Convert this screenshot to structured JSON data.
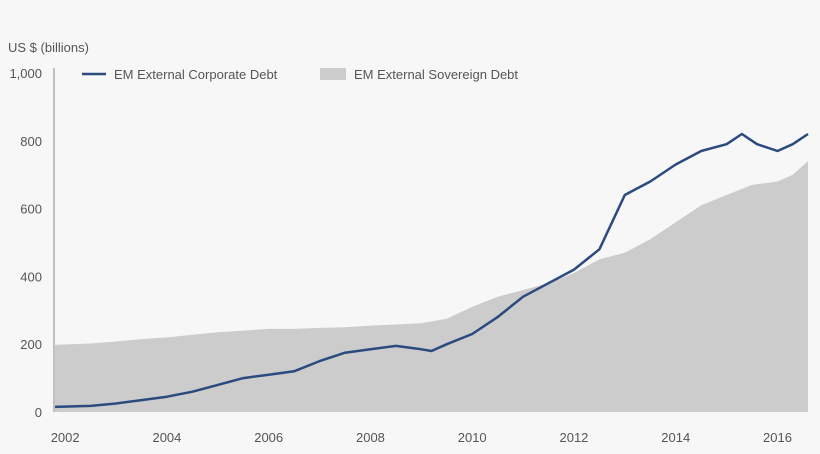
{
  "chart_data": {
    "type": "area+line",
    "y_unit_label": "US $ (billions)",
    "ylim": [
      0,
      1000
    ],
    "xlim": [
      2001.8,
      2016.6
    ],
    "y_ticks": [
      "0",
      "200",
      "400",
      "600",
      "800",
      "1,000"
    ],
    "x_ticks": [
      "2002",
      "2004",
      "2006",
      "2008",
      "2010",
      "2012",
      "2014",
      "2016"
    ],
    "grid": false,
    "legend_position": "top-left",
    "series": [
      {
        "name": "EM External Sovereign Debt",
        "kind": "area",
        "color": "#cccccc",
        "x": [
          2001.8,
          2002.5,
          2003.0,
          2003.5,
          2004.0,
          2004.5,
          2005.0,
          2005.5,
          2006.0,
          2006.5,
          2007.0,
          2007.5,
          2008.0,
          2008.5,
          2009.0,
          2009.5,
          2010.0,
          2010.5,
          2011.0,
          2011.5,
          2012.0,
          2012.5,
          2013.0,
          2013.5,
          2014.0,
          2014.5,
          2015.0,
          2015.5,
          2016.0,
          2016.3,
          2016.6
        ],
        "y": [
          198,
          202,
          208,
          215,
          220,
          228,
          235,
          240,
          245,
          245,
          248,
          250,
          255,
          258,
          262,
          275,
          310,
          340,
          360,
          380,
          410,
          450,
          470,
          510,
          560,
          610,
          640,
          670,
          680,
          700,
          740
        ]
      },
      {
        "name": "EM External Corporate Debt",
        "kind": "line",
        "color": "#2b4a7e",
        "x": [
          2001.8,
          2002.5,
          2003.0,
          2003.5,
          2004.0,
          2004.5,
          2005.0,
          2005.5,
          2006.0,
          2006.5,
          2007.0,
          2007.5,
          2008.0,
          2008.5,
          2009.0,
          2009.2,
          2009.5,
          2010.0,
          2010.5,
          2011.0,
          2011.5,
          2012.0,
          2012.5,
          2013.0,
          2013.5,
          2014.0,
          2014.5,
          2015.0,
          2015.3,
          2015.6,
          2016.0,
          2016.3,
          2016.6
        ],
        "y": [
          15,
          18,
          25,
          35,
          45,
          60,
          80,
          100,
          110,
          120,
          150,
          175,
          185,
          195,
          185,
          180,
          200,
          230,
          280,
          340,
          380,
          420,
          480,
          640,
          680,
          730,
          770,
          790,
          820,
          790,
          770,
          790,
          820
        ]
      }
    ]
  }
}
